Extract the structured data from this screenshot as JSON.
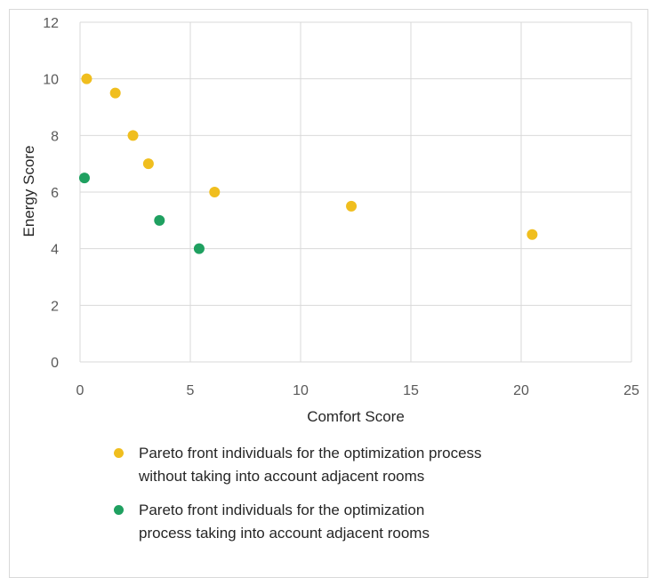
{
  "chart_data": {
    "type": "scatter",
    "title": "",
    "xlabel": "Comfort Score",
    "ylabel": "Energy Score",
    "xlim": [
      0,
      25
    ],
    "ylim": [
      0,
      12
    ],
    "xticks": [
      "0",
      "5",
      "10",
      "15",
      "20",
      "25"
    ],
    "yticks": [
      "0",
      "2",
      "4",
      "6",
      "8",
      "10",
      "12"
    ],
    "grid": true,
    "legend_position": "bottom",
    "series": [
      {
        "name": "Pareto front individuals for the optimization process without taking into account adjacent rooms",
        "legend_lines": [
          "Pareto front individuals for the optimization process",
          "without taking into account adjacent rooms"
        ],
        "color": "#f0be1e",
        "points": [
          {
            "x": 0.3,
            "y": 10.0
          },
          {
            "x": 1.6,
            "y": 9.5
          },
          {
            "x": 2.4,
            "y": 8.0
          },
          {
            "x": 3.1,
            "y": 7.0
          },
          {
            "x": 6.1,
            "y": 6.0
          },
          {
            "x": 12.3,
            "y": 5.5
          },
          {
            "x": 20.5,
            "y": 4.5
          }
        ]
      },
      {
        "name": "Pareto front individuals for the optimization process taking into account adjacent rooms",
        "legend_lines": [
          "Pareto front individuals for the optimization",
          "process taking into account adjacent rooms"
        ],
        "color": "#1fa060",
        "points": [
          {
            "x": 0.2,
            "y": 6.5
          },
          {
            "x": 3.6,
            "y": 5.0
          },
          {
            "x": 5.4,
            "y": 4.0
          }
        ]
      }
    ]
  }
}
